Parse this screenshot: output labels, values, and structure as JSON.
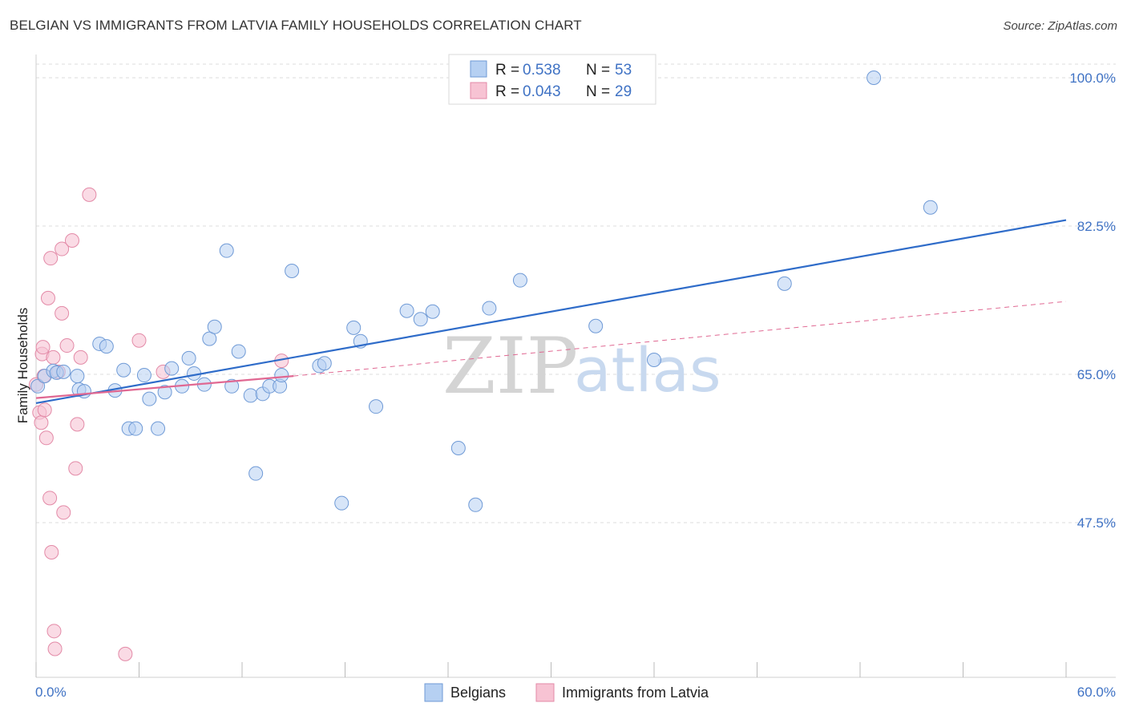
{
  "header": {
    "title": "BELGIAN VS IMMIGRANTS FROM LATVIA FAMILY HOUSEHOLDS CORRELATION CHART",
    "source": "Source: ZipAtlas.com"
  },
  "legend": {
    "r_label": "R =",
    "n_label": "N =",
    "series": [
      {
        "r": "0.538",
        "n": "53"
      },
      {
        "r": "0.043",
        "n": "29"
      }
    ]
  },
  "watermark": {
    "zip": "ZIP",
    "atlas": "atlas"
  },
  "colors": {
    "belgian_fill": "#b6d0f2",
    "belgian_stroke": "#6f9ad6",
    "belgian_line": "#2f6cc9",
    "latvia_fill": "#f7c3d3",
    "latvia_stroke": "#e38aa7",
    "latvia_line": "#e06892",
    "grid": "#dddddd",
    "tick_label": "#3f72c4"
  },
  "chart_data": {
    "type": "scatter",
    "title": "BELGIAN VS IMMIGRANTS FROM LATVIA FAMILY HOUSEHOLDS CORRELATION CHART",
    "xlabel": "",
    "ylabel": "Family Households",
    "xlim": [
      0,
      60
    ],
    "ylim": [
      29.5,
      101.5
    ],
    "x_tick_labels": [
      "0.0%",
      "60.0%"
    ],
    "y_ticks": [
      47.5,
      65.0,
      82.5,
      100.0
    ],
    "y_tick_labels": [
      "47.5%",
      "65.0%",
      "82.5%",
      "100.0%"
    ],
    "legend_position": "top-center",
    "series": [
      {
        "name": "Belgians",
        "r": 0.538,
        "n": 53,
        "trend": {
          "x0": 0,
          "y0": 61.6,
          "x1": 60,
          "y1": 83.2,
          "style": "solid"
        },
        "points": [
          [
            0.1,
            63.6
          ],
          [
            0.5,
            64.8
          ],
          [
            1.0,
            65.4
          ],
          [
            1.2,
            65.2
          ],
          [
            1.6,
            65.3
          ],
          [
            2.4,
            64.8
          ],
          [
            2.5,
            63.2
          ],
          [
            2.8,
            63.0
          ],
          [
            3.7,
            68.6
          ],
          [
            4.1,
            68.3
          ],
          [
            4.6,
            63.1
          ],
          [
            5.1,
            65.5
          ],
          [
            5.4,
            58.6
          ],
          [
            5.8,
            58.6
          ],
          [
            6.3,
            64.9
          ],
          [
            6.6,
            62.1
          ],
          [
            7.1,
            58.6
          ],
          [
            7.5,
            62.9
          ],
          [
            7.9,
            65.7
          ],
          [
            8.5,
            63.6
          ],
          [
            8.9,
            66.9
          ],
          [
            9.2,
            65.1
          ],
          [
            9.8,
            63.8
          ],
          [
            10.1,
            69.2
          ],
          [
            10.4,
            70.6
          ],
          [
            11.1,
            79.6
          ],
          [
            11.4,
            63.6
          ],
          [
            11.8,
            67.7
          ],
          [
            12.5,
            62.5
          ],
          [
            12.8,
            53.3
          ],
          [
            13.2,
            62.7
          ],
          [
            13.6,
            63.6
          ],
          [
            14.2,
            63.6
          ],
          [
            14.3,
            64.9
          ],
          [
            14.9,
            77.2
          ],
          [
            16.5,
            66.0
          ],
          [
            16.8,
            66.3
          ],
          [
            17.8,
            49.8
          ],
          [
            18.5,
            70.5
          ],
          [
            18.9,
            68.9
          ],
          [
            19.8,
            61.2
          ],
          [
            21.6,
            72.5
          ],
          [
            22.4,
            71.5
          ],
          [
            23.1,
            72.4
          ],
          [
            24.6,
            56.3
          ],
          [
            25.6,
            49.6
          ],
          [
            26.4,
            72.8
          ],
          [
            28.2,
            76.1
          ],
          [
            32.6,
            70.7
          ],
          [
            36.0,
            66.7
          ],
          [
            43.6,
            75.7
          ],
          [
            48.8,
            100.0
          ],
          [
            52.1,
            84.7
          ]
        ]
      },
      {
        "name": "Immigrants from Latvia",
        "r": 0.043,
        "n": 29,
        "trend_solid": {
          "x0": 0,
          "y0": 62.2,
          "x1": 15.0,
          "y1": 64.8,
          "style": "solid"
        },
        "trend_dashed": {
          "x0": 15.0,
          "y0": 64.8,
          "x1": 60,
          "y1": 73.6,
          "style": "dashed"
        },
        "points": [
          [
            0.0,
            63.8
          ],
          [
            0.2,
            60.5
          ],
          [
            0.3,
            59.3
          ],
          [
            0.35,
            67.4
          ],
          [
            0.4,
            68.2
          ],
          [
            0.45,
            64.8
          ],
          [
            0.5,
            60.8
          ],
          [
            0.6,
            57.5
          ],
          [
            0.7,
            74.0
          ],
          [
            0.8,
            50.4
          ],
          [
            0.85,
            78.7
          ],
          [
            0.9,
            44.0
          ],
          [
            1.0,
            67.0
          ],
          [
            1.05,
            34.7
          ],
          [
            1.1,
            32.6
          ],
          [
            1.3,
            65.3
          ],
          [
            1.5,
            79.8
          ],
          [
            1.5,
            72.2
          ],
          [
            1.6,
            48.7
          ],
          [
            1.8,
            68.4
          ],
          [
            2.1,
            80.8
          ],
          [
            2.3,
            53.9
          ],
          [
            2.4,
            59.1
          ],
          [
            2.6,
            67.0
          ],
          [
            3.1,
            86.2
          ],
          [
            5.2,
            32.0
          ],
          [
            6.0,
            69.0
          ],
          [
            7.4,
            65.3
          ],
          [
            14.3,
            66.6
          ]
        ]
      }
    ]
  },
  "bottom_legend": {
    "items": [
      "Belgians",
      "Immigrants from Latvia"
    ]
  }
}
